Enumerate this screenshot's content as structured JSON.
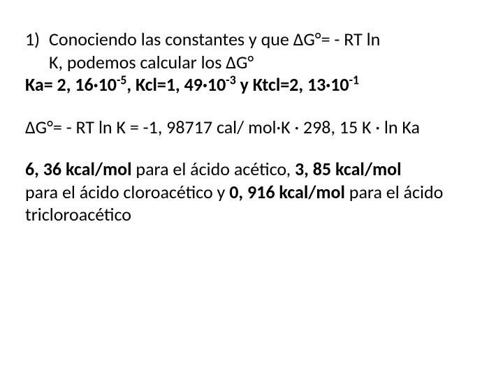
{
  "item": {
    "marker": "1)",
    "line1": "Conociendo las constantes y que ΔG°= - RT ln",
    "line2": "K, podemos calcular los ΔG°"
  },
  "constants": {
    "ka_pre": "Ka= 2, 16·10",
    "ka_exp": "-5",
    "kcl_pre": ", Kcl=1, 49·10",
    "kcl_exp": "-3",
    "mid": " y Ktcl=2, 13·10",
    "ktcl_exp": "-1"
  },
  "formula": "ΔG°= - RT ln K = -1, 98717 cal/ mol·K · 298, 15 K · ln Ka",
  "result": {
    "v1": "6, 36 kcal/mol",
    "t1": " para el ácido acético, ",
    "v2": "3, 85 kcal/mol",
    "t2": " para el ácido cloroacético y ",
    "v3": "0, 916 kcal/mol",
    "t3": " para el ácido tricloroacético"
  }
}
